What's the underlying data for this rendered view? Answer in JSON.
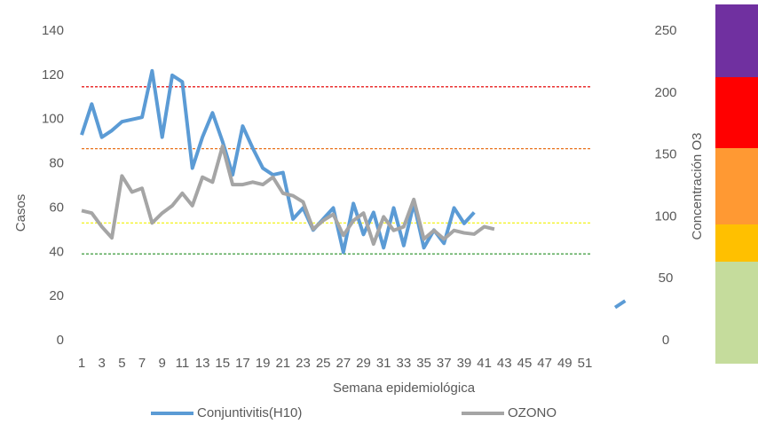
{
  "chart_data": {
    "type": "line",
    "categories": [
      1,
      null,
      3,
      null,
      5,
      null,
      7,
      null,
      9,
      null,
      11,
      null,
      13,
      null,
      15,
      null,
      17,
      null,
      19,
      null,
      21,
      null,
      23,
      null,
      25,
      null,
      27,
      null,
      29,
      null,
      31,
      null,
      33,
      null,
      35,
      null,
      37,
      null,
      39,
      null,
      41,
      null,
      43,
      null,
      45,
      null,
      47,
      null,
      49,
      null,
      51,
      null,
      null,
      null,
      null
    ],
    "xlabel": "Semana epidemiológica",
    "ylabel": "Casos",
    "y2label": "Concentración O3",
    "ylim": [
      0,
      140
    ],
    "yticks": [
      0,
      20,
      40,
      60,
      80,
      100,
      120,
      140
    ],
    "y2lim": [
      0,
      250
    ],
    "y2ticks": [
      0,
      50,
      100,
      150,
      200,
      250
    ],
    "series": [
      {
        "name": "Conjuntivitis(H10)",
        "color": "#5b9bd5",
        "values": [
          93,
          107,
          92,
          95,
          99,
          100,
          101,
          122,
          92,
          120,
          117,
          78,
          92,
          103,
          90,
          75,
          97,
          87,
          78,
          75,
          76,
          55,
          60,
          50,
          55,
          60,
          40,
          62,
          48,
          58,
          42,
          60,
          43,
          62,
          42,
          50,
          44,
          60,
          53,
          58,
          null,
          null,
          null,
          null,
          null,
          null,
          null,
          null,
          null,
          null,
          null,
          null,
          null,
          15,
          18
        ]
      },
      {
        "name": "OZONO",
        "color": "#a5a5a5",
        "axis": "y2",
        "values": [
          105,
          103,
          92,
          83,
          133,
          120,
          123,
          95,
          103,
          109,
          119,
          109,
          132,
          128,
          157,
          126,
          126,
          128,
          126,
          132,
          119,
          117,
          112,
          90,
          97,
          102,
          85,
          97,
          103,
          78,
          100,
          89,
          92,
          114,
          82,
          89,
          82,
          89,
          87,
          86,
          92,
          90,
          null,
          null,
          null,
          null,
          null,
          null,
          null,
          null,
          null,
          null,
          null,
          null,
          null
        ]
      }
    ],
    "reference_lines": [
      {
        "value": 205,
        "axis": "y2",
        "color": "#e81c1c"
      },
      {
        "value": 155,
        "axis": "y2",
        "color": "#e8721c"
      },
      {
        "value": 95,
        "axis": "y2",
        "color": "#f2f21c"
      },
      {
        "value": 70,
        "axis": "y2",
        "color": "#3a9a3a"
      }
    ],
    "legend": "bottom"
  }
}
